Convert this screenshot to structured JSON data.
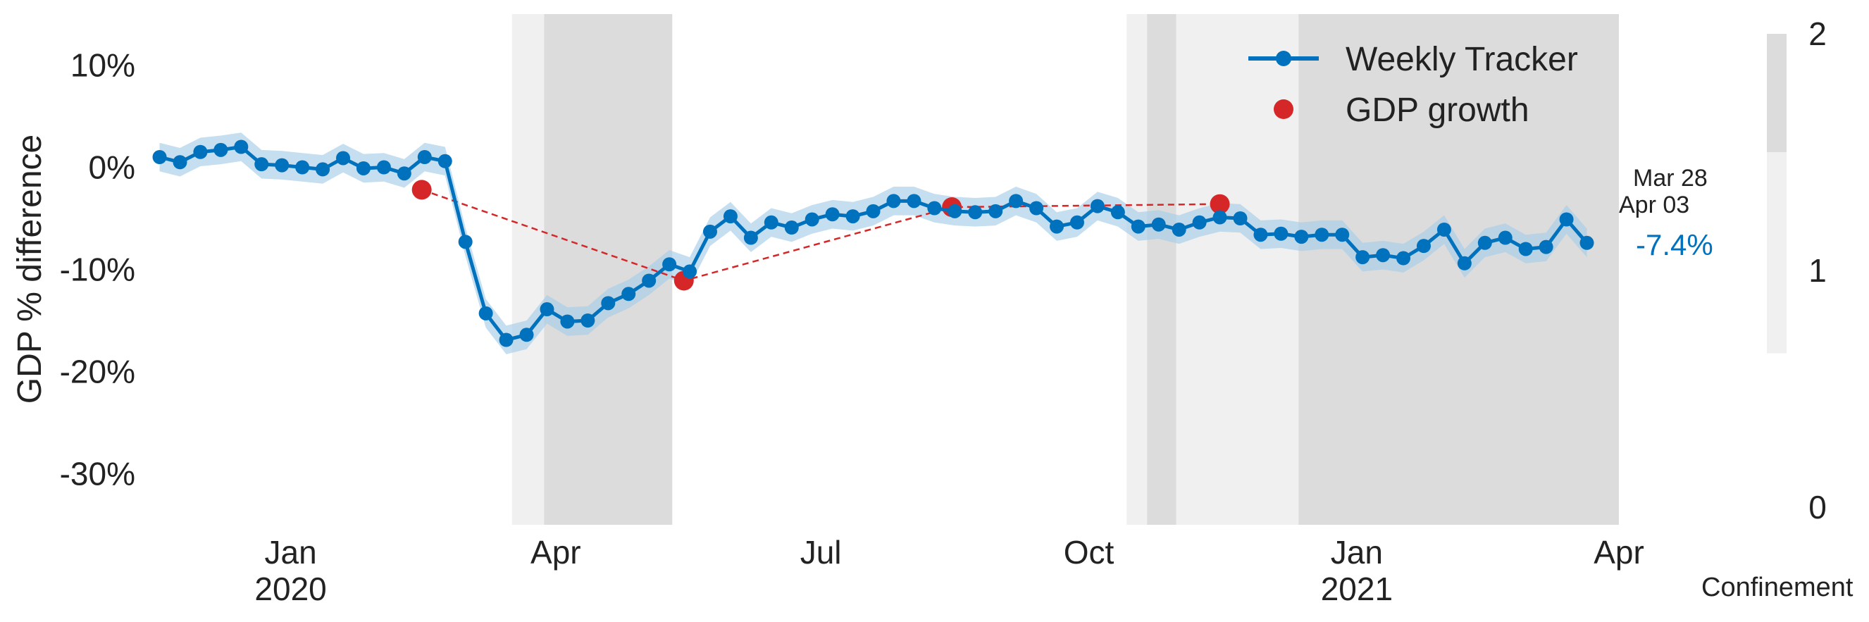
{
  "chart_data": {
    "type": "line",
    "xlabel": "",
    "ylabel": "GDP % difference",
    "ylim": [
      -35,
      15
    ],
    "xlim": [
      "2019-11-13",
      "2021-04-01"
    ],
    "yticks": [
      {
        "value": 10,
        "label": "10%"
      },
      {
        "value": 0,
        "label": "0%"
      },
      {
        "value": -10,
        "label": "-10%"
      },
      {
        "value": -20,
        "label": "-20%"
      },
      {
        "value": -30,
        "label": "-30%"
      }
    ],
    "xticks": [
      {
        "date": "2020-01-01",
        "label": "Jan",
        "year": "2020"
      },
      {
        "date": "2020-04-01",
        "label": "Apr",
        "year": ""
      },
      {
        "date": "2020-07-01",
        "label": "Jul",
        "year": ""
      },
      {
        "date": "2020-10-01",
        "label": "Oct",
        "year": ""
      },
      {
        "date": "2021-01-01",
        "label": "Jan",
        "year": "2021"
      },
      {
        "date": "2021-04-01",
        "label": "Apr",
        "year": ""
      }
    ],
    "grid": false,
    "legend": {
      "placement": "top-right",
      "entries": [
        "Weekly Tracker",
        "GDP growth"
      ]
    },
    "series": [
      {
        "name": "Weekly Tracker",
        "color": "#0072bd",
        "band_color": "#a6cde8",
        "points": [
          [
            "2019-11-17",
            1.0
          ],
          [
            "2019-11-24",
            0.5
          ],
          [
            "2019-12-01",
            1.5
          ],
          [
            "2019-12-08",
            1.7
          ],
          [
            "2019-12-15",
            2.0
          ],
          [
            "2019-12-22",
            0.3
          ],
          [
            "2019-12-29",
            0.2
          ],
          [
            "2020-01-05",
            0.0
          ],
          [
            "2020-01-12",
            -0.2
          ],
          [
            "2020-01-19",
            0.9
          ],
          [
            "2020-01-26",
            -0.1
          ],
          [
            "2020-02-02",
            0.0
          ],
          [
            "2020-02-09",
            -0.6
          ],
          [
            "2020-02-16",
            1.0
          ],
          [
            "2020-02-23",
            0.6
          ],
          [
            "2020-03-01",
            -7.3
          ],
          [
            "2020-03-08",
            -14.3
          ],
          [
            "2020-03-15",
            -16.9
          ],
          [
            "2020-03-22",
            -16.4
          ],
          [
            "2020-03-29",
            -13.9
          ],
          [
            "2020-04-05",
            -15.1
          ],
          [
            "2020-04-12",
            -15.0
          ],
          [
            "2020-04-19",
            -13.3
          ],
          [
            "2020-04-26",
            -12.4
          ],
          [
            "2020-05-03",
            -11.1
          ],
          [
            "2020-05-10",
            -9.5
          ],
          [
            "2020-05-17",
            -10.2
          ],
          [
            "2020-05-24",
            -6.3
          ],
          [
            "2020-05-31",
            -4.8
          ],
          [
            "2020-06-07",
            -6.9
          ],
          [
            "2020-06-14",
            -5.4
          ],
          [
            "2020-06-21",
            -5.9
          ],
          [
            "2020-06-28",
            -5.1
          ],
          [
            "2020-07-05",
            -4.6
          ],
          [
            "2020-07-12",
            -4.8
          ],
          [
            "2020-07-19",
            -4.3
          ],
          [
            "2020-07-26",
            -3.3
          ],
          [
            "2020-08-02",
            -3.3
          ],
          [
            "2020-08-09",
            -4.0
          ],
          [
            "2020-08-16",
            -4.3
          ],
          [
            "2020-08-23",
            -4.4
          ],
          [
            "2020-08-30",
            -4.3
          ],
          [
            "2020-09-06",
            -3.3
          ],
          [
            "2020-09-13",
            -4.0
          ],
          [
            "2020-09-20",
            -5.8
          ],
          [
            "2020-09-27",
            -5.4
          ],
          [
            "2020-10-04",
            -3.8
          ],
          [
            "2020-10-11",
            -4.4
          ],
          [
            "2020-10-18",
            -5.8
          ],
          [
            "2020-10-25",
            -5.6
          ],
          [
            "2020-11-01",
            -6.1
          ],
          [
            "2020-11-08",
            -5.4
          ],
          [
            "2020-11-15",
            -4.9
          ],
          [
            "2020-11-22",
            -5.0
          ],
          [
            "2020-11-29",
            -6.6
          ],
          [
            "2020-12-06",
            -6.5
          ],
          [
            "2020-12-13",
            -6.8
          ],
          [
            "2020-12-20",
            -6.6
          ],
          [
            "2020-12-27",
            -6.6
          ],
          [
            "2021-01-03",
            -8.8
          ],
          [
            "2021-01-10",
            -8.6
          ],
          [
            "2021-01-17",
            -8.9
          ],
          [
            "2021-01-24",
            -7.7
          ],
          [
            "2021-01-31",
            -6.1
          ],
          [
            "2021-02-07",
            -9.4
          ],
          [
            "2021-02-14",
            -7.4
          ],
          [
            "2021-02-21",
            -6.9
          ],
          [
            "2021-02-28",
            -8.0
          ],
          [
            "2021-03-07",
            -7.8
          ],
          [
            "2021-03-14",
            -5.1
          ],
          [
            "2021-03-21",
            -7.4
          ]
        ],
        "band_halfwidth": 1.4
      },
      {
        "name": "GDP growth",
        "color": "#d62728",
        "points": [
          [
            "2020-02-15",
            -2.2
          ],
          [
            "2020-05-15",
            -11.1
          ],
          [
            "2020-08-15",
            -3.9
          ],
          [
            "2020-11-15",
            -3.6
          ]
        ]
      }
    ],
    "confinement": {
      "label": "Confinement",
      "ticks": [
        {
          "value": 0,
          "label": "0"
        },
        {
          "value": 1,
          "label": "1"
        },
        {
          "value": 2,
          "label": "2"
        }
      ],
      "periods": [
        {
          "start": "2020-03-17",
          "end": "2020-03-28",
          "level": 1
        },
        {
          "start": "2020-03-28",
          "end": "2020-05-11",
          "level": 2
        },
        {
          "start": "2020-10-14",
          "end": "2020-10-21",
          "level": 1
        },
        {
          "start": "2020-10-21",
          "end": "2020-10-31",
          "level": 2
        },
        {
          "start": "2020-10-31",
          "end": "2020-12-12",
          "level": 1
        },
        {
          "start": "2020-12-12",
          "end": "2021-04-01",
          "level": 2
        }
      ],
      "colors": {
        "1": "#f0f0f0",
        "2": "#dcdcdc"
      }
    },
    "annotation": {
      "date_line1": "Mar 28",
      "date_line2": "Apr 03",
      "value": "-7.4%"
    }
  }
}
